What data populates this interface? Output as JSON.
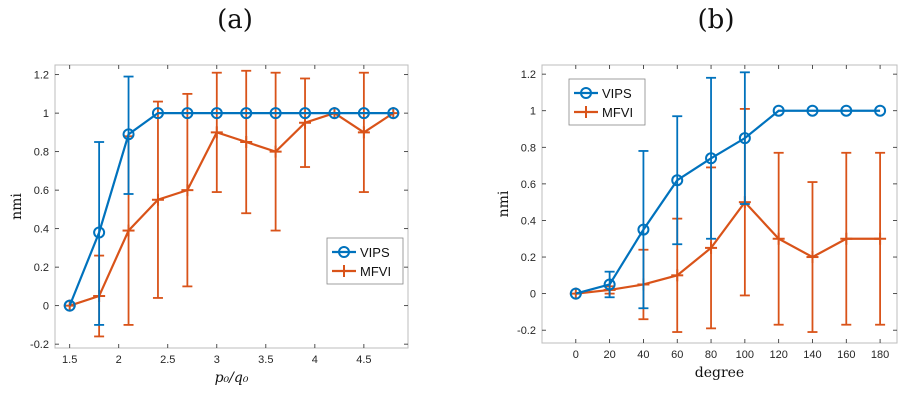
{
  "colors": {
    "vips": "#0072BD",
    "mfvi": "#D95319",
    "axis": "#262626",
    "frame": "#bdbdbd"
  },
  "chart_data": [
    {
      "type": "line",
      "panel_label": "(a)",
      "xlabel": "p₀/q₀",
      "ylabel": "nmi",
      "xlim": [
        1.35,
        4.95
      ],
      "ylim": [
        -0.22,
        1.25
      ],
      "xticks": [
        1.5,
        2,
        2.5,
        3,
        3.5,
        4,
        4.5
      ],
      "xtick_labels": [
        "1.5",
        "2",
        "2.5",
        "3",
        "3.5",
        "4",
        "4.5"
      ],
      "yticks": [
        -0.2,
        0,
        0.2,
        0.4,
        0.6,
        0.8,
        1,
        1.2
      ],
      "ytick_labels": [
        "-0.2",
        "0",
        "0.2",
        "0.4",
        "0.6",
        "0.8",
        "1",
        "1.2"
      ],
      "legend_position": "bottom-right",
      "series": [
        {
          "name": "VIPS",
          "marker": "circle",
          "x": [
            1.5,
            1.8,
            2.1,
            2.4,
            2.7,
            3.0,
            3.3,
            3.6,
            3.9,
            4.2,
            4.5,
            4.8
          ],
          "y": [
            0,
            0.38,
            0.89,
            1,
            1,
            1,
            1,
            1,
            1,
            1,
            1,
            1
          ],
          "err_low": [
            0,
            0.48,
            0.31,
            0,
            0,
            0,
            0,
            0,
            0,
            0,
            0,
            0
          ],
          "err_high": [
            0,
            0.47,
            0.3,
            0,
            0,
            0,
            0,
            0,
            0,
            0,
            0,
            0
          ]
        },
        {
          "name": "MFVI",
          "marker": "plus",
          "x": [
            1.5,
            1.8,
            2.1,
            2.4,
            2.7,
            3.0,
            3.3,
            3.6,
            3.9,
            4.2,
            4.5,
            4.8
          ],
          "y": [
            0,
            0.05,
            0.39,
            0.55,
            0.6,
            0.9,
            0.85,
            0.8,
            0.95,
            1,
            0.9,
            1
          ],
          "err_low": [
            0,
            0.21,
            0.49,
            0.51,
            0.5,
            0.31,
            0.37,
            0.41,
            0.23,
            0,
            0.31,
            0
          ],
          "err_high": [
            0,
            0.21,
            0.49,
            0.51,
            0.5,
            0.31,
            0.37,
            0.41,
            0.23,
            0,
            0.31,
            0
          ]
        }
      ]
    },
    {
      "type": "line",
      "panel_label": "(b)",
      "xlabel": "degree",
      "ylabel": "nmi",
      "xlim": [
        -20,
        190
      ],
      "ylim": [
        -0.27,
        1.25
      ],
      "xticks": [
        0,
        20,
        40,
        60,
        80,
        100,
        120,
        140,
        160,
        180
      ],
      "xtick_labels": [
        "0",
        "20",
        "40",
        "60",
        "80",
        "100",
        "120",
        "140",
        "160",
        "180"
      ],
      "yticks": [
        -0.2,
        0,
        0.2,
        0.4,
        0.6,
        0.8,
        1,
        1.2
      ],
      "ytick_labels": [
        "-0.2",
        "0",
        "0.2",
        "0.4",
        "0.6",
        "0.8",
        "1",
        "1.2"
      ],
      "legend_position": "top-left",
      "series": [
        {
          "name": "VIPS",
          "marker": "circle",
          "x": [
            0,
            20,
            40,
            60,
            80,
            100,
            120,
            140,
            160,
            180
          ],
          "y": [
            0,
            0.05,
            0.35,
            0.62,
            0.74,
            0.85,
            1,
            1,
            1,
            1
          ],
          "err_low": [
            0,
            0.07,
            0.43,
            0.35,
            0.44,
            0.36,
            0,
            0,
            0,
            0
          ],
          "err_high": [
            0,
            0.07,
            0.43,
            0.35,
            0.44,
            0.36,
            0,
            0,
            0,
            0
          ]
        },
        {
          "name": "MFVI",
          "marker": "plus",
          "x": [
            0,
            20,
            40,
            60,
            80,
            100,
            120,
            140,
            160,
            180
          ],
          "y": [
            0,
            0.02,
            0.05,
            0.1,
            0.25,
            0.5,
            0.3,
            0.2,
            0.3,
            0.3
          ],
          "err_low": [
            0,
            0.02,
            0.19,
            0.31,
            0.44,
            0.51,
            0.47,
            0.41,
            0.47,
            0.47
          ],
          "err_high": [
            0,
            0.02,
            0.19,
            0.31,
            0.44,
            0.51,
            0.47,
            0.41,
            0.47,
            0.47
          ]
        }
      ]
    }
  ]
}
